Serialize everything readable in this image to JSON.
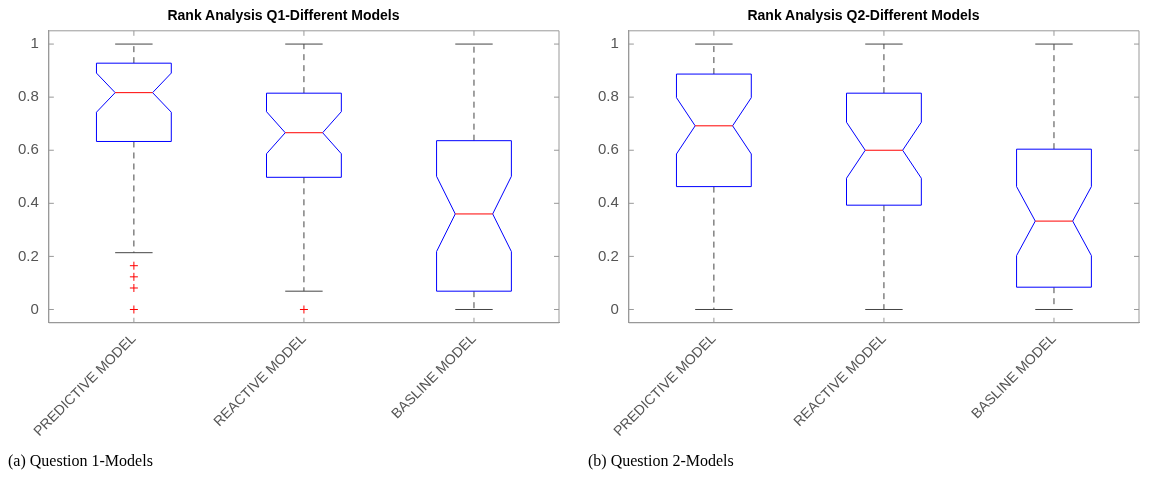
{
  "chart_data": [
    {
      "type": "box",
      "title": "Rank Analysis Q1-Different Models",
      "categories": [
        "PREDICTIVE MODEL",
        "REACTIVE MODEL",
        "BASLINE MODEL"
      ],
      "boxes": [
        {
          "low": 0.214,
          "q1": 0.633,
          "median": 0.817,
          "q3": 0.928,
          "high": 1,
          "outliers": [
            0.165,
            0.123,
            0.081,
            0
          ]
        },
        {
          "low": 0.069,
          "q1": 0.498,
          "median": 0.666,
          "q3": 0.815,
          "high": 1,
          "outliers": [
            0
          ]
        },
        {
          "low": 0,
          "q1": 0.069,
          "median": 0.36,
          "q3": 0.636,
          "high": 1
        }
      ],
      "color": "#0000ff",
      "ylim": [
        -0.05,
        1.05
      ],
      "yticks": [
        0,
        0.2,
        0.4,
        0.6,
        0.8,
        1
      ],
      "grid": false,
      "legend": false,
      "annotations": [
        "(a) Question 1-Models"
      ]
    },
    {
      "type": "box",
      "title": "Rank Analysis Q2-Different Models",
      "categories": [
        "PREDICTIVE MODEL",
        "REACTIVE MODEL",
        "BASLINE MODEL"
      ],
      "boxes": [
        {
          "low": 0,
          "q1": 0.463,
          "median": 0.692,
          "q3": 0.887,
          "high": 1
        },
        {
          "low": 0,
          "q1": 0.393,
          "median": 0.6,
          "q3": 0.815,
          "high": 1
        },
        {
          "low": 0,
          "q1": 0.084,
          "median": 0.333,
          "q3": 0.604,
          "high": 1
        }
      ],
      "color": "#0000ff",
      "ylim": [
        -0.05,
        1.05
      ],
      "yticks": [
        0,
        0.2,
        0.4,
        0.6,
        0.8,
        1
      ],
      "grid": false,
      "legend": false,
      "annotations": [
        "(b) Question 2-Models"
      ]
    }
  ]
}
